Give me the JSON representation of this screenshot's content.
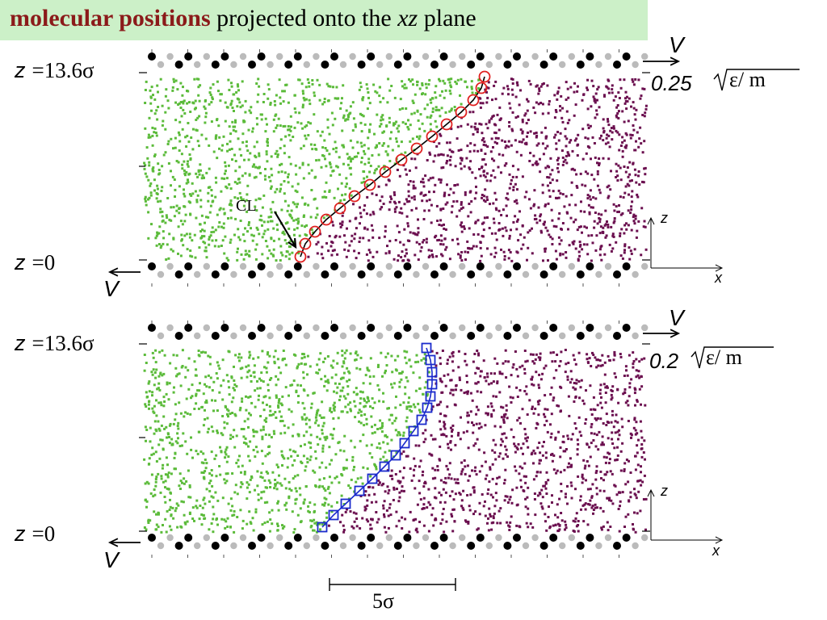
{
  "title": {
    "bold": "molecular positions",
    "pre": "projected onto the",
    "italic": "xz",
    "post": "plane"
  },
  "colors": {
    "fluid_a": "#5bbb3a",
    "fluid_b": "#6b0f4f",
    "wall_dark": "#000000",
    "wall_light": "#bbbbbb",
    "title_bg": "#ccf0c8",
    "title_bold": "#8b1a1a",
    "cl_red": "#e02020",
    "cl_blue": "#1a2acc"
  },
  "panels": [
    {
      "z_top": {
        "z": "z",
        "value": "=13.6σ"
      },
      "z_bottom": {
        "z": "z",
        "value": "=0"
      },
      "velocity_top": "V",
      "velocity_bottom": "V",
      "speed": "0.25",
      "speed_unit": "ε/ m",
      "axis_z": "z",
      "axis_x": "x",
      "cl_label": "CL",
      "marker": "circle",
      "marker_color": "#e02020"
    },
    {
      "z_top": {
        "z": "z",
        "value": "=13.6σ"
      },
      "z_bottom": {
        "z": "z",
        "value": "=0"
      },
      "velocity_top": "V",
      "velocity_bottom": "V",
      "speed": "0.2",
      "speed_unit": "ε/ m",
      "axis_z": "z",
      "axis_x": "x",
      "marker": "square",
      "marker_color": "#1a2acc"
    }
  ],
  "scale_bar": "5σ"
}
